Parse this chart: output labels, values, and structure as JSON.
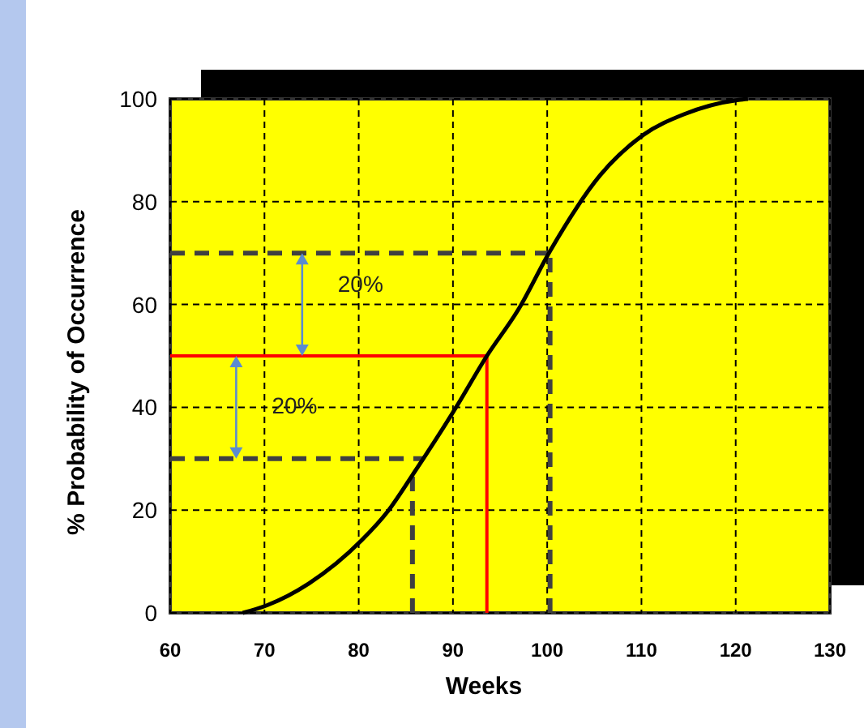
{
  "chart_data": {
    "type": "line",
    "xlabel": "Weeks",
    "ylabel": "% Probability of Occurrence",
    "xlim": [
      60,
      130
    ],
    "xticks": [
      60,
      70,
      80,
      90,
      100,
      110,
      120,
      130
    ],
    "ylim": [
      0,
      100
    ],
    "yticks": [
      0,
      20,
      40,
      60,
      80,
      100
    ],
    "grid": true,
    "marker": "none",
    "line_style": "solid",
    "series": [
      {
        "color": "#000000",
        "x": [
          67.7,
          70.3,
          74.7,
          80.3,
          83.1,
          85.7,
          90.3,
          93.6,
          96.9,
          100.3,
          105.6,
          110.2,
          114.5,
          120.3,
          121.3
        ],
        "values": [
          0,
          1.5,
          5.7,
          14.1,
          19.8,
          26.8,
          39.9,
          50,
          58.9,
          70.4,
          85.1,
          93,
          97,
          99.8,
          100
        ]
      }
    ],
    "ref_lines": [
      {
        "axis": "y",
        "value": 70,
        "color": "#404040",
        "line_style": "dashed"
      },
      {
        "axis": "x",
        "value": 100.3,
        "color": "#404040",
        "line_style": "dashed"
      },
      {
        "axis": "y",
        "value": 50,
        "color": "#ff0000",
        "line_style": "solid"
      },
      {
        "axis": "x",
        "value": 93.6,
        "color": "#ff0000",
        "line_style": "solid"
      },
      {
        "axis": "y",
        "value": 30,
        "color": "#404040",
        "line_style": "dashed"
      },
      {
        "axis": "x",
        "value": 85.7,
        "color": "#404040",
        "line_style": "dashed"
      }
    ],
    "annotations": [
      "20%",
      "20%"
    ]
  }
}
